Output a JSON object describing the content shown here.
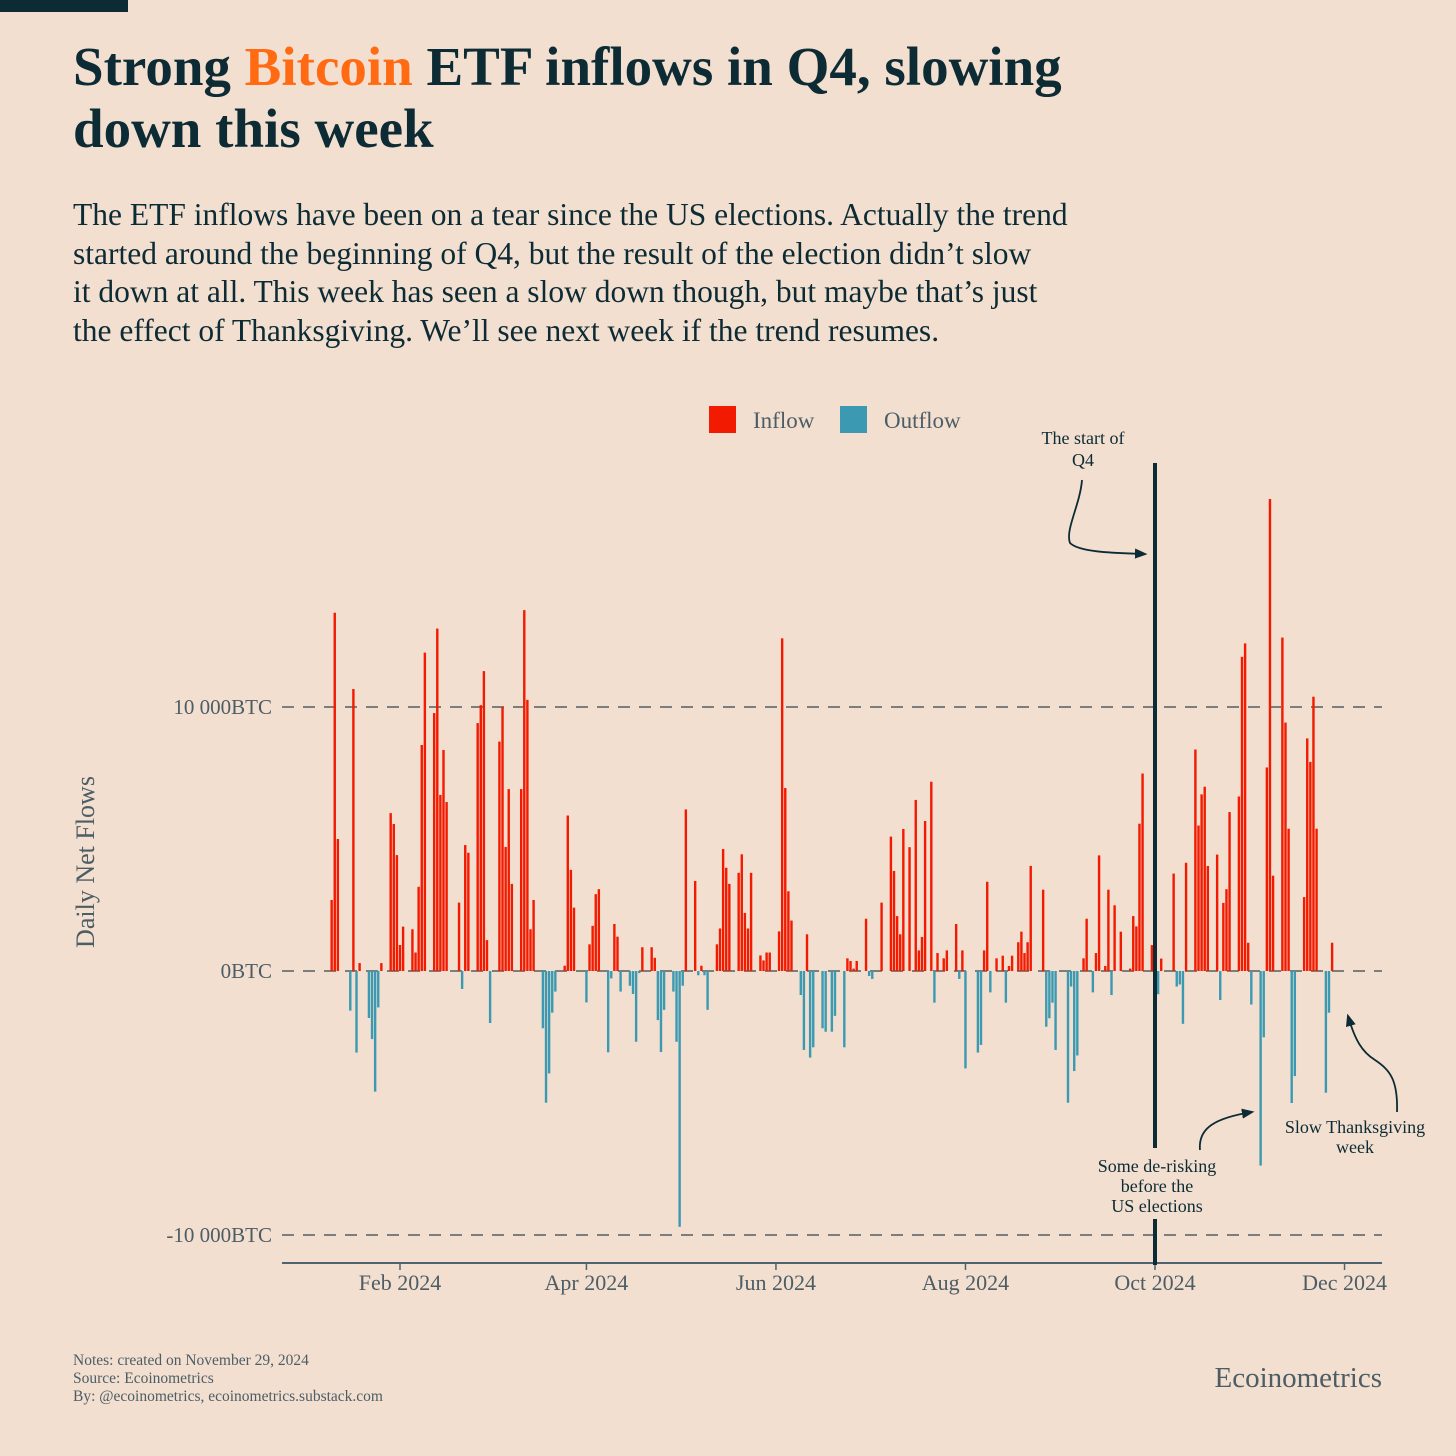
{
  "header": {
    "title_prefix": "Strong ",
    "title_highlight": "Bitcoin",
    "title_line1_suffix": " ETF inflows in Q4, slowing",
    "title_line2": "down this week",
    "subtitle_lines": [
      "The ETF inflows have been on a tear since the US elections. Actually the trend",
      "started around the beginning of Q4, but the result of the election didn’t slow",
      "it down at all. This week has seen a slow down though, but maybe that’s just",
      "the effect of Thanksgiving. We’ll see next week if the trend resumes."
    ]
  },
  "footer": {
    "notes": "Notes: created on November 29, 2024",
    "source": "Source: Ecoinometrics",
    "by": "By: @ecoinometrics, ecoinometrics.substack.com",
    "brand": "Ecoinometrics"
  },
  "colors": {
    "background": "#f2dfcf",
    "dark": "#0d2b35",
    "highlight": "#ff6a13",
    "inflow": "#f21a00",
    "outflow": "#3b9ab2"
  },
  "chart_data": {
    "type": "bar",
    "title": "Strong Bitcoin ETF inflows in Q4, slowing down this week",
    "ylabel": "Daily Net Flows",
    "xlabel": "",
    "ylim": [
      -11000,
      19500
    ],
    "grid": "horizontal dashed at y ticks",
    "legend": {
      "placement": "top-center",
      "entries": [
        {
          "label": "Inflow"
        },
        {
          "label": "Outflow"
        }
      ]
    },
    "y_ticks": [
      {
        "value": 10000,
        "label": "10 000BTC"
      },
      {
        "value": 0,
        "label": "0BTC"
      },
      {
        "value": -10000,
        "label": "-10 000BTC"
      }
    ],
    "x_ticks": [
      {
        "day": 31,
        "label": "Feb 2024"
      },
      {
        "day": 91,
        "label": "Apr 2024"
      },
      {
        "day": 152,
        "label": "Jun 2024"
      },
      {
        "day": 213,
        "label": "Aug 2024"
      },
      {
        "day": 274,
        "label": "Oct 2024"
      },
      {
        "day": 335,
        "label": "Dec 2024"
      }
    ],
    "x_range_days": [
      -6,
      348
    ],
    "vline_day": 274,
    "annotations": [
      {
        "lines": [
          "The start of",
          "Q4"
        ]
      },
      {
        "lines": [
          "Some de-risking",
          "before the",
          "US elections"
        ]
      },
      {
        "lines": [
          "Slow Thanksgiving",
          "week"
        ]
      }
    ],
    "points_day_since_2024_01_01_and_btc": [
      [
        9,
        2690
      ],
      [
        10,
        13570
      ],
      [
        11,
        5000
      ],
      [
        15,
        -1500
      ],
      [
        16,
        10680
      ],
      [
        17,
        -3090
      ],
      [
        18,
        300
      ],
      [
        21,
        -1780
      ],
      [
        22,
        -2580
      ],
      [
        23,
        -4570
      ],
      [
        24,
        -1380
      ],
      [
        25,
        300
      ],
      [
        28,
        5980
      ],
      [
        29,
        5570
      ],
      [
        30,
        4390
      ],
      [
        31,
        985
      ],
      [
        32,
        1680
      ],
      [
        35,
        1580
      ],
      [
        36,
        700
      ],
      [
        37,
        3190
      ],
      [
        38,
        8560
      ],
      [
        39,
        12060
      ],
      [
        42,
        9770
      ],
      [
        43,
        12970
      ],
      [
        44,
        6670
      ],
      [
        45,
        8370
      ],
      [
        46,
        6400
      ],
      [
        50,
        2590
      ],
      [
        51,
        -680
      ],
      [
        52,
        4770
      ],
      [
        53,
        4480
      ],
      [
        56,
        9390
      ],
      [
        57,
        10070
      ],
      [
        58,
        11360
      ],
      [
        59,
        1170
      ],
      [
        60,
        -1970
      ],
      [
        63,
        8690
      ],
      [
        64,
        10000
      ],
      [
        65,
        4700
      ],
      [
        66,
        6890
      ],
      [
        67,
        3300
      ],
      [
        70,
        6890
      ],
      [
        71,
        13670
      ],
      [
        72,
        10270
      ],
      [
        73,
        1580
      ],
      [
        74,
        2690
      ],
      [
        77,
        -2170
      ],
      [
        78,
        -4990
      ],
      [
        79,
        -3880
      ],
      [
        80,
        -1580
      ],
      [
        81,
        -780
      ],
      [
        84,
        200
      ],
      [
        85,
        5890
      ],
      [
        86,
        3830
      ],
      [
        87,
        2400
      ],
      [
        91,
        -1190
      ],
      [
        92,
        1010
      ],
      [
        93,
        1710
      ],
      [
        94,
        2910
      ],
      [
        95,
        3100
      ],
      [
        98,
        -3080
      ],
      [
        99,
        -280
      ],
      [
        100,
        1780
      ],
      [
        101,
        1300
      ],
      [
        102,
        -780
      ],
      [
        105,
        -560
      ],
      [
        106,
        -870
      ],
      [
        107,
        -2680
      ],
      [
        108,
        -80
      ],
      [
        109,
        900
      ],
      [
        112,
        900
      ],
      [
        113,
        500
      ],
      [
        114,
        -1860
      ],
      [
        115,
        -3070
      ],
      [
        116,
        -1470
      ],
      [
        119,
        -780
      ],
      [
        120,
        -2680
      ],
      [
        121,
        -9690
      ],
      [
        122,
        -560
      ],
      [
        123,
        6120
      ],
      [
        126,
        3410
      ],
      [
        127,
        -160
      ],
      [
        128,
        200
      ],
      [
        129,
        -160
      ],
      [
        130,
        -1470
      ],
      [
        133,
        1010
      ],
      [
        134,
        1610
      ],
      [
        135,
        4620
      ],
      [
        136,
        3910
      ],
      [
        137,
        3300
      ],
      [
        140,
        3720
      ],
      [
        141,
        4420
      ],
      [
        142,
        2200
      ],
      [
        143,
        1610
      ],
      [
        144,
        3720
      ],
      [
        147,
        590
      ],
      [
        148,
        400
      ],
      [
        149,
        700
      ],
      [
        150,
        700
      ],
      [
        153,
        1500
      ],
      [
        154,
        12600
      ],
      [
        155,
        6930
      ],
      [
        156,
        3020
      ],
      [
        157,
        1910
      ],
      [
        160,
        -910
      ],
      [
        161,
        -2990
      ],
      [
        162,
        1390
      ],
      [
        163,
        -3280
      ],
      [
        164,
        -2890
      ],
      [
        167,
        -2170
      ],
      [
        168,
        -2300
      ],
      [
        170,
        -2300
      ],
      [
        171,
        -1700
      ],
      [
        174,
        -2890
      ],
      [
        175,
        480
      ],
      [
        176,
        380
      ],
      [
        177,
        90
      ],
      [
        178,
        380
      ],
      [
        181,
        1980
      ],
      [
        182,
        -190
      ],
      [
        183,
        -300
      ],
      [
        186,
        2590
      ],
      [
        189,
        5090
      ],
      [
        190,
        3790
      ],
      [
        191,
        2080
      ],
      [
        192,
        1390
      ],
      [
        193,
        5380
      ],
      [
        195,
        4690
      ],
      [
        197,
        6480
      ],
      [
        198,
        780
      ],
      [
        199,
        1290
      ],
      [
        200,
        5680
      ],
      [
        202,
        7170
      ],
      [
        203,
        -1200
      ],
      [
        204,
        680
      ],
      [
        206,
        480
      ],
      [
        207,
        780
      ],
      [
        210,
        1780
      ],
      [
        211,
        -300
      ],
      [
        212,
        780
      ],
      [
        213,
        -3690
      ],
      [
        217,
        -3090
      ],
      [
        218,
        -2800
      ],
      [
        219,
        780
      ],
      [
        220,
        3380
      ],
      [
        221,
        -810
      ],
      [
        223,
        480
      ],
      [
        225,
        580
      ],
      [
        226,
        -1200
      ],
      [
        227,
        190
      ],
      [
        228,
        580
      ],
      [
        230,
        1090
      ],
      [
        231,
        1490
      ],
      [
        232,
        680
      ],
      [
        233,
        1090
      ],
      [
        234,
        3980
      ],
      [
        238,
        3080
      ],
      [
        239,
        -2110
      ],
      [
        240,
        -1790
      ],
      [
        241,
        -1200
      ],
      [
        242,
        -2990
      ],
      [
        246,
        -4990
      ],
      [
        247,
        -590
      ],
      [
        248,
        -3790
      ],
      [
        249,
        -3200
      ],
      [
        251,
        480
      ],
      [
        252,
        1980
      ],
      [
        254,
        -810
      ],
      [
        255,
        680
      ],
      [
        256,
        4380
      ],
      [
        258,
        190
      ],
      [
        259,
        3080
      ],
      [
        260,
        -910
      ],
      [
        261,
        2490
      ],
      [
        263,
        1490
      ],
      [
        266,
        90
      ],
      [
        267,
        2080
      ],
      [
        268,
        1690
      ],
      [
        269,
        5580
      ],
      [
        270,
        7480
      ],
      [
        273,
        980
      ],
      [
        274,
        -1690
      ],
      [
        275,
        -880
      ],
      [
        276,
        470
      ],
      [
        280,
        3690
      ],
      [
        281,
        -590
      ],
      [
        282,
        -510
      ],
      [
        283,
        -2000
      ],
      [
        284,
        4100
      ],
      [
        287,
        8390
      ],
      [
        288,
        5510
      ],
      [
        289,
        6690
      ],
      [
        290,
        6980
      ],
      [
        291,
        3980
      ],
      [
        294,
        4410
      ],
      [
        295,
        -1100
      ],
      [
        296,
        2580
      ],
      [
        297,
        3100
      ],
      [
        298,
        6020
      ],
      [
        301,
        6610
      ],
      [
        302,
        11900
      ],
      [
        303,
        12410
      ],
      [
        304,
        1070
      ],
      [
        305,
        -1270
      ],
      [
        308,
        -7370
      ],
      [
        309,
        -2510
      ],
      [
        310,
        7710
      ],
      [
        311,
        17880
      ],
      [
        312,
        3610
      ],
      [
        315,
        12630
      ],
      [
        316,
        9410
      ],
      [
        317,
        5390
      ],
      [
        318,
        -5000
      ],
      [
        319,
        -3980
      ],
      [
        322,
        2800
      ],
      [
        323,
        8810
      ],
      [
        324,
        7920
      ],
      [
        325,
        10390
      ],
      [
        326,
        5390
      ],
      [
        329,
        -4610
      ],
      [
        330,
        -1580
      ],
      [
        331,
        1070
      ]
    ]
  }
}
